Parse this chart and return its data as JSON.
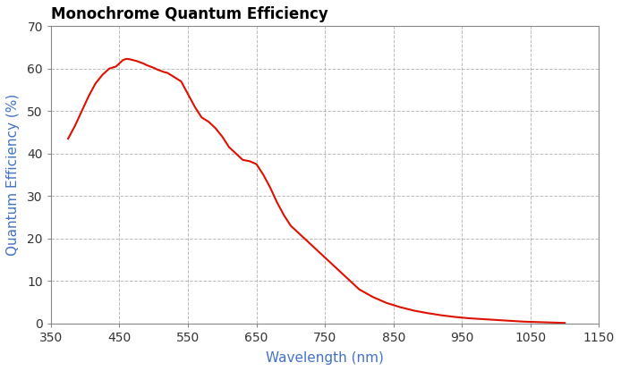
{
  "title": "Monochrome Quantum Efficiency",
  "xlabel": "Wavelength (nm)",
  "ylabel": "Quantum Efficiency (%)",
  "xlim": [
    350,
    1150
  ],
  "ylim": [
    0,
    70
  ],
  "xticks": [
    350,
    450,
    550,
    650,
    750,
    850,
    950,
    1050,
    1150
  ],
  "yticks": [
    0,
    10,
    20,
    30,
    40,
    50,
    60,
    70
  ],
  "line_color": "#DD1100",
  "fig_bg_color": "#FFFFFF",
  "plot_bg_color": "#FFFFFF",
  "grid_color": "#AAAAAA",
  "wavelengths": [
    375,
    385,
    395,
    405,
    415,
    425,
    435,
    445,
    455,
    460,
    465,
    470,
    475,
    480,
    485,
    490,
    495,
    500,
    505,
    510,
    515,
    520,
    530,
    540,
    550,
    560,
    570,
    580,
    590,
    600,
    610,
    620,
    630,
    640,
    650,
    660,
    670,
    680,
    690,
    700,
    710,
    720,
    730,
    740,
    750,
    760,
    770,
    780,
    790,
    800,
    820,
    840,
    860,
    880,
    900,
    920,
    940,
    960,
    980,
    1000,
    1020,
    1040,
    1060,
    1080,
    1100
  ],
  "qe_values": [
    43.5,
    46.5,
    50.0,
    53.5,
    56.5,
    58.5,
    60.0,
    60.5,
    62.0,
    62.3,
    62.2,
    62.0,
    61.8,
    61.5,
    61.2,
    60.8,
    60.5,
    60.2,
    59.8,
    59.5,
    59.2,
    59.0,
    58.0,
    57.0,
    54.0,
    51.0,
    48.5,
    47.5,
    46.0,
    44.0,
    41.5,
    40.0,
    38.5,
    38.2,
    37.5,
    35.0,
    32.0,
    28.5,
    25.5,
    23.0,
    21.5,
    20.0,
    18.5,
    17.0,
    15.5,
    14.0,
    12.5,
    11.0,
    9.5,
    8.0,
    6.2,
    4.8,
    3.8,
    3.0,
    2.4,
    1.9,
    1.5,
    1.2,
    1.0,
    0.8,
    0.6,
    0.4,
    0.3,
    0.2,
    0.1
  ],
  "title_fontsize": 12,
  "label_fontsize": 11,
  "tick_fontsize": 10,
  "label_color": "#4472C4",
  "tick_color": "#333333",
  "title_color": "#000000",
  "spine_color": "#888888",
  "line_width": 1.5
}
